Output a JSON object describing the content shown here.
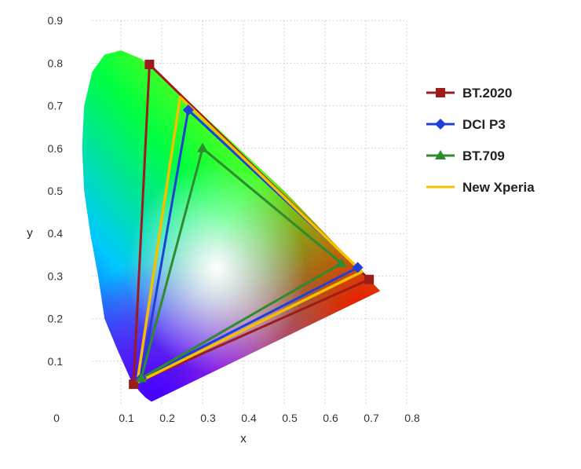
{
  "chart_data": {
    "type": "scatter",
    "title": "",
    "xlabel": "x",
    "ylabel": "y",
    "xlim": [
      0,
      0.8
    ],
    "ylim": [
      0,
      0.9
    ],
    "x_ticks": [
      "0",
      "0.1",
      "0.2",
      "0.3",
      "0.4",
      "0.5",
      "0.6",
      "0.7",
      "0.8"
    ],
    "y_ticks": [
      "0.1",
      "0.2",
      "0.3",
      "0.4",
      "0.5",
      "0.6",
      "0.7",
      "0.8",
      "0.9"
    ],
    "grid": true,
    "legend_position": "right",
    "background": "CIE 1931 chromaticity diagram (spectral locus)",
    "locus": [
      [
        0.175,
        0.005
      ],
      [
        0.16,
        0.015
      ],
      [
        0.145,
        0.03
      ],
      [
        0.125,
        0.055
      ],
      [
        0.09,
        0.13
      ],
      [
        0.06,
        0.2
      ],
      [
        0.045,
        0.295
      ],
      [
        0.025,
        0.4
      ],
      [
        0.01,
        0.5
      ],
      [
        0.005,
        0.6
      ],
      [
        0.01,
        0.7
      ],
      [
        0.03,
        0.78
      ],
      [
        0.06,
        0.82
      ],
      [
        0.1,
        0.83
      ],
      [
        0.15,
        0.81
      ],
      [
        0.2,
        0.77
      ],
      [
        0.3,
        0.68
      ],
      [
        0.4,
        0.59
      ],
      [
        0.5,
        0.5
      ],
      [
        0.6,
        0.4
      ],
      [
        0.7,
        0.3
      ],
      [
        0.735,
        0.265
      ]
    ],
    "series": [
      {
        "name": "BT.2020",
        "color": "#9e1b1b",
        "marker": "square",
        "points": [
          [
            0.708,
            0.292
          ],
          [
            0.17,
            0.797
          ],
          [
            0.131,
            0.046
          ]
        ]
      },
      {
        "name": "DCI P3",
        "color": "#1f3fd6",
        "marker": "diamond",
        "points": [
          [
            0.68,
            0.32
          ],
          [
            0.265,
            0.69
          ],
          [
            0.15,
            0.06
          ]
        ]
      },
      {
        "name": "BT.709",
        "color": "#2e8b2e",
        "marker": "triangle",
        "points": [
          [
            0.64,
            0.33
          ],
          [
            0.3,
            0.6
          ],
          [
            0.15,
            0.06
          ]
        ]
      },
      {
        "name": "New Xperia",
        "color": "#f2c200",
        "marker": "none",
        "points": [
          [
            0.69,
            0.31
          ],
          [
            0.245,
            0.72
          ],
          [
            0.14,
            0.05
          ]
        ]
      }
    ]
  }
}
